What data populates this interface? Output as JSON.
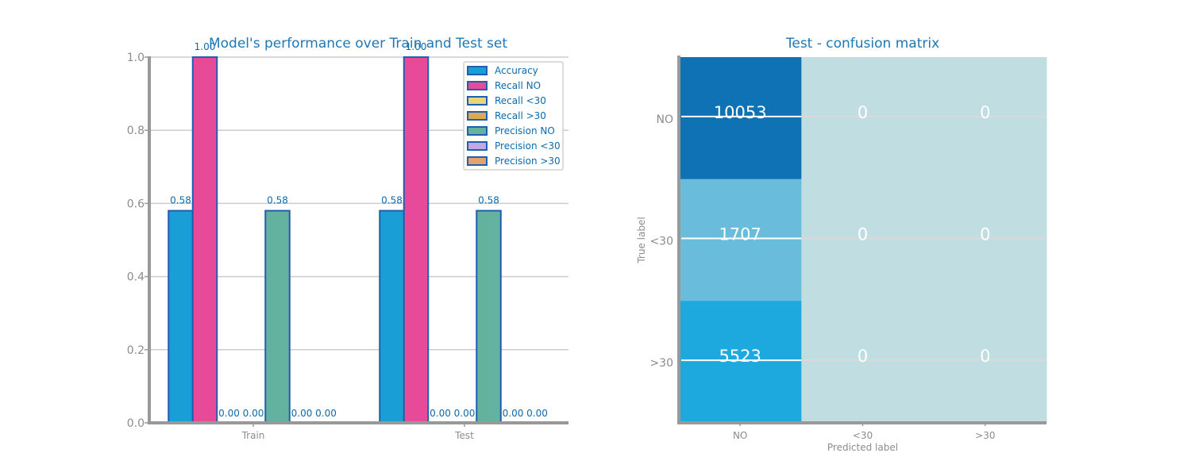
{
  "colors": {
    "accent": "#1F77B4",
    "axis": "#999999",
    "grid": "#cccccc",
    "bar_edge": "#1F5FAF",
    "cm_dark": "#0F72B4",
    "cm_mid": "#69BCDB",
    "cm_light": "#1EA9DE",
    "cm_empty": "#C0DEE1"
  },
  "chart_data": [
    {
      "type": "bar",
      "title": "Model's performance over Train and Test set",
      "categories": [
        "Train",
        "Test"
      ],
      "ylim": [
        0,
        1
      ],
      "yticks": [
        "0.0",
        "0.2",
        "0.4",
        "0.6",
        "0.8",
        "1.0"
      ],
      "grid": true,
      "legend_position": "top-right",
      "series": [
        {
          "name": "Accuracy",
          "color": "#1A9ED6",
          "values": [
            0.58,
            0.58
          ],
          "labels": [
            "0.58",
            "0.58"
          ]
        },
        {
          "name": "Recall NO",
          "color": "#E84A9A",
          "values": [
            1.0,
            1.0
          ],
          "labels": [
            "1.00",
            "1.00"
          ]
        },
        {
          "name": "Recall <30",
          "color": "#E8D479",
          "values": [
            0.0,
            0.0
          ],
          "labels": [
            "0.00",
            "0.00"
          ]
        },
        {
          "name": "Recall >30",
          "color": "#D9A954",
          "values": [
            0.0,
            0.0
          ],
          "labels": [
            "0.00",
            "0.00"
          ]
        },
        {
          "name": "Precision NO",
          "color": "#62B29F",
          "values": [
            0.58,
            0.58
          ],
          "labels": [
            "0.58",
            "0.58"
          ]
        },
        {
          "name": "Precision <30",
          "color": "#C2A8E0",
          "values": [
            0.0,
            0.0
          ],
          "labels": [
            "0.00",
            "0.00"
          ]
        },
        {
          "name": "Precision >30",
          "color": "#E3A36A",
          "values": [
            0.0,
            0.0
          ],
          "labels": [
            "0.00",
            "0.00"
          ]
        }
      ]
    },
    {
      "type": "heatmap",
      "title": "Test - confusion matrix",
      "xlabel": "Predicted label",
      "ylabel": "True label",
      "x_categories": [
        "NO",
        "<30",
        ">30"
      ],
      "y_categories": [
        "NO",
        "<30",
        ">30"
      ],
      "values": [
        [
          10053,
          0,
          0
        ],
        [
          1707,
          0,
          0
        ],
        [
          5523,
          0,
          0
        ]
      ]
    }
  ]
}
